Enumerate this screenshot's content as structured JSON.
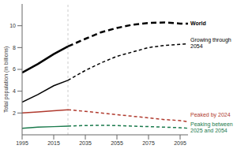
{
  "chart_data": {
    "type": "line",
    "y_label": "Total population (in billions)",
    "x": [
      1995,
      2005,
      2015,
      2024,
      2035,
      2045,
      2055,
      2065,
      2075,
      2085,
      2095,
      2100
    ],
    "reference_x": 2024,
    "xlim": [
      1995,
      2100
    ],
    "xticks": [
      1995,
      2015,
      2035,
      2055,
      2075,
      2095
    ],
    "ylim": [
      0,
      12
    ],
    "yticks": [
      2,
      4,
      6,
      8,
      10
    ],
    "grid": false,
    "series": [
      {
        "name": "World",
        "color": "#000000",
        "values": [
          5.7,
          6.5,
          7.4,
          8.1,
          8.8,
          9.4,
          9.8,
          10.1,
          10.25,
          10.3,
          10.2,
          10.2
        ]
      },
      {
        "name": "Growing through 2054",
        "color": "#000000",
        "values": [
          3.0,
          3.7,
          4.5,
          5.0,
          5.9,
          6.6,
          7.2,
          7.6,
          8.0,
          8.2,
          8.3,
          8.35
        ]
      },
      {
        "name": "Peaked by 2024",
        "color": "#b03a2e",
        "values": [
          2.0,
          2.1,
          2.2,
          2.3,
          2.15,
          2.0,
          1.85,
          1.7,
          1.55,
          1.4,
          1.3,
          1.2
        ]
      },
      {
        "name": "Peaking between 2025 and 2054",
        "color": "#1a7a4c",
        "values": [
          0.6,
          0.7,
          0.75,
          0.8,
          0.85,
          0.87,
          0.85,
          0.8,
          0.75,
          0.7,
          0.65,
          0.6
        ]
      }
    ]
  }
}
